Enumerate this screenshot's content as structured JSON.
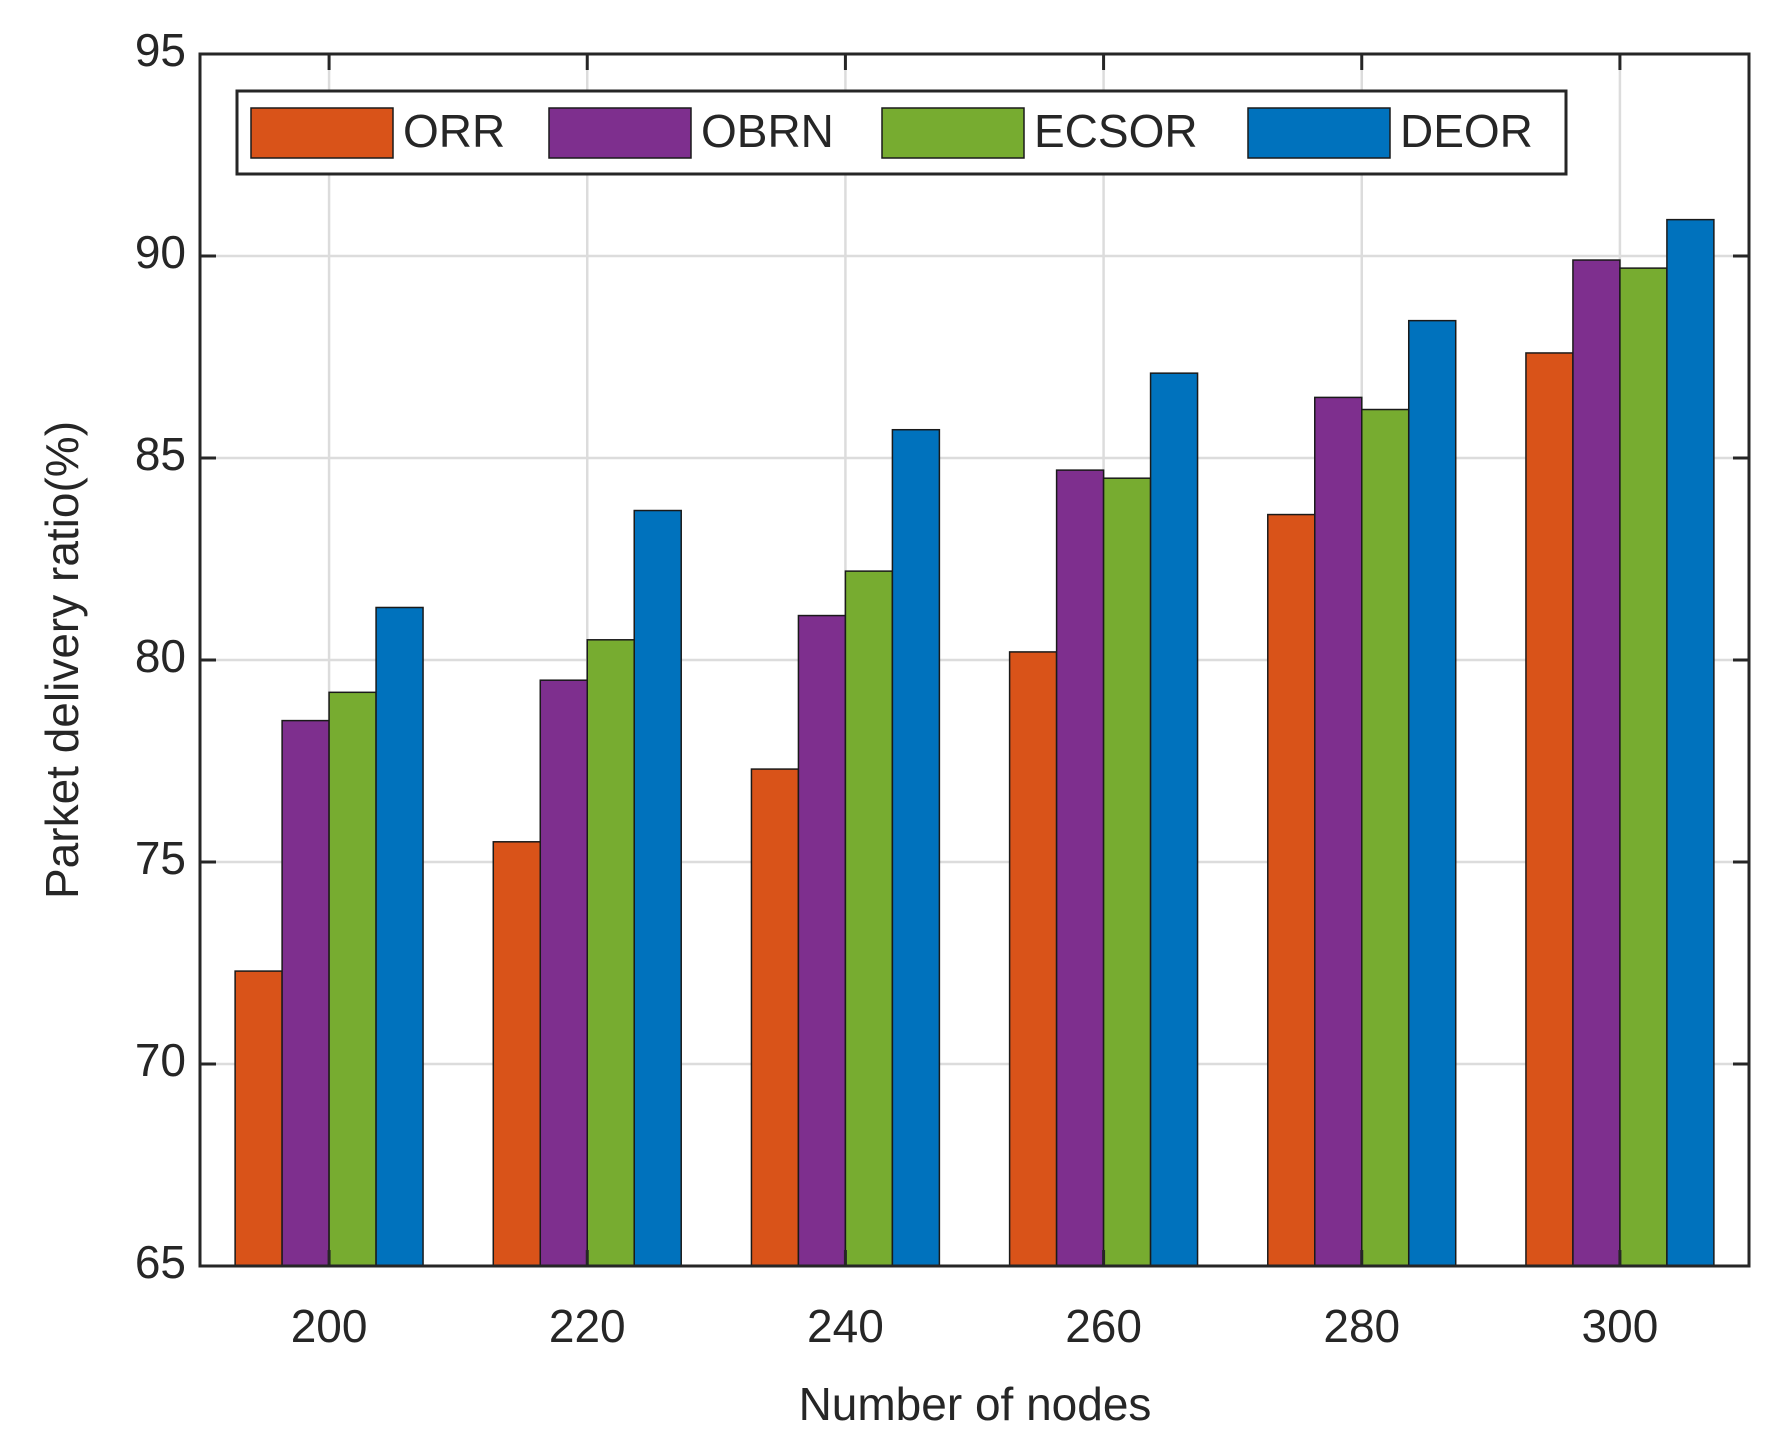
{
  "chart_data": {
    "type": "bar",
    "x_label": "Number of nodes",
    "y_label": "Parket delivery ratio(%)",
    "categories": [
      "200",
      "220",
      "240",
      "260",
      "280",
      "300"
    ],
    "series": [
      {
        "name": "ORR",
        "color": "#d95319",
        "values": [
          72.3,
          75.5,
          77.3,
          80.2,
          83.6,
          87.6
        ]
      },
      {
        "name": "OBRN",
        "color": "#7e2f8e",
        "values": [
          78.5,
          79.5,
          81.1,
          84.7,
          86.5,
          89.9
        ]
      },
      {
        "name": "ECSOR",
        "color": "#77ac30",
        "values": [
          79.2,
          80.5,
          82.2,
          84.5,
          86.2,
          89.7
        ]
      },
      {
        "name": "DEOR",
        "color": "#0072bd",
        "values": [
          81.3,
          83.7,
          85.7,
          87.1,
          88.4,
          90.9
        ]
      }
    ],
    "ylim": [
      65,
      95
    ],
    "yticks": [
      65,
      70,
      75,
      80,
      85,
      90,
      95
    ],
    "grid": true,
    "legend": "top-left"
  }
}
